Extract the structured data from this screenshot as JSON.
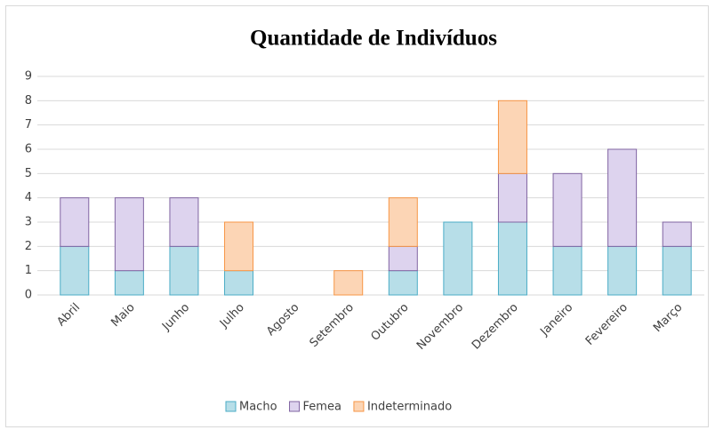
{
  "chart_data": {
    "type": "stacked_bar",
    "title": "Quantidade de Indivíduos",
    "categories": [
      "Abril",
      "Maio",
      "Junho",
      "Julho",
      "Agosto",
      "Setembro",
      "Outubro",
      "Novembro",
      "Dezembro",
      "Janeiro",
      "Fevereiro",
      "Março"
    ],
    "series": [
      {
        "name": "Macho",
        "color": "#b7dee8",
        "border": "#4bacc6",
        "values": [
          2,
          1,
          2,
          1,
          0,
          0,
          1,
          3,
          3,
          2,
          2,
          2
        ]
      },
      {
        "name": "Femea",
        "color": "#ddd3ee",
        "border": "#8064a2",
        "values": [
          2,
          3,
          2,
          0,
          0,
          0,
          1,
          0,
          2,
          3,
          4,
          1
        ]
      },
      {
        "name": "Indeterminado",
        "color": "#fcd5b5",
        "border": "#f79646",
        "values": [
          0,
          0,
          0,
          2,
          0,
          1,
          2,
          0,
          3,
          0,
          0,
          0
        ]
      }
    ],
    "ylim": [
      0,
      9
    ],
    "yticks": [
      0,
      1,
      2,
      3,
      4,
      5,
      6,
      7,
      8,
      9
    ],
    "grid": true,
    "legend": "bottom"
  }
}
